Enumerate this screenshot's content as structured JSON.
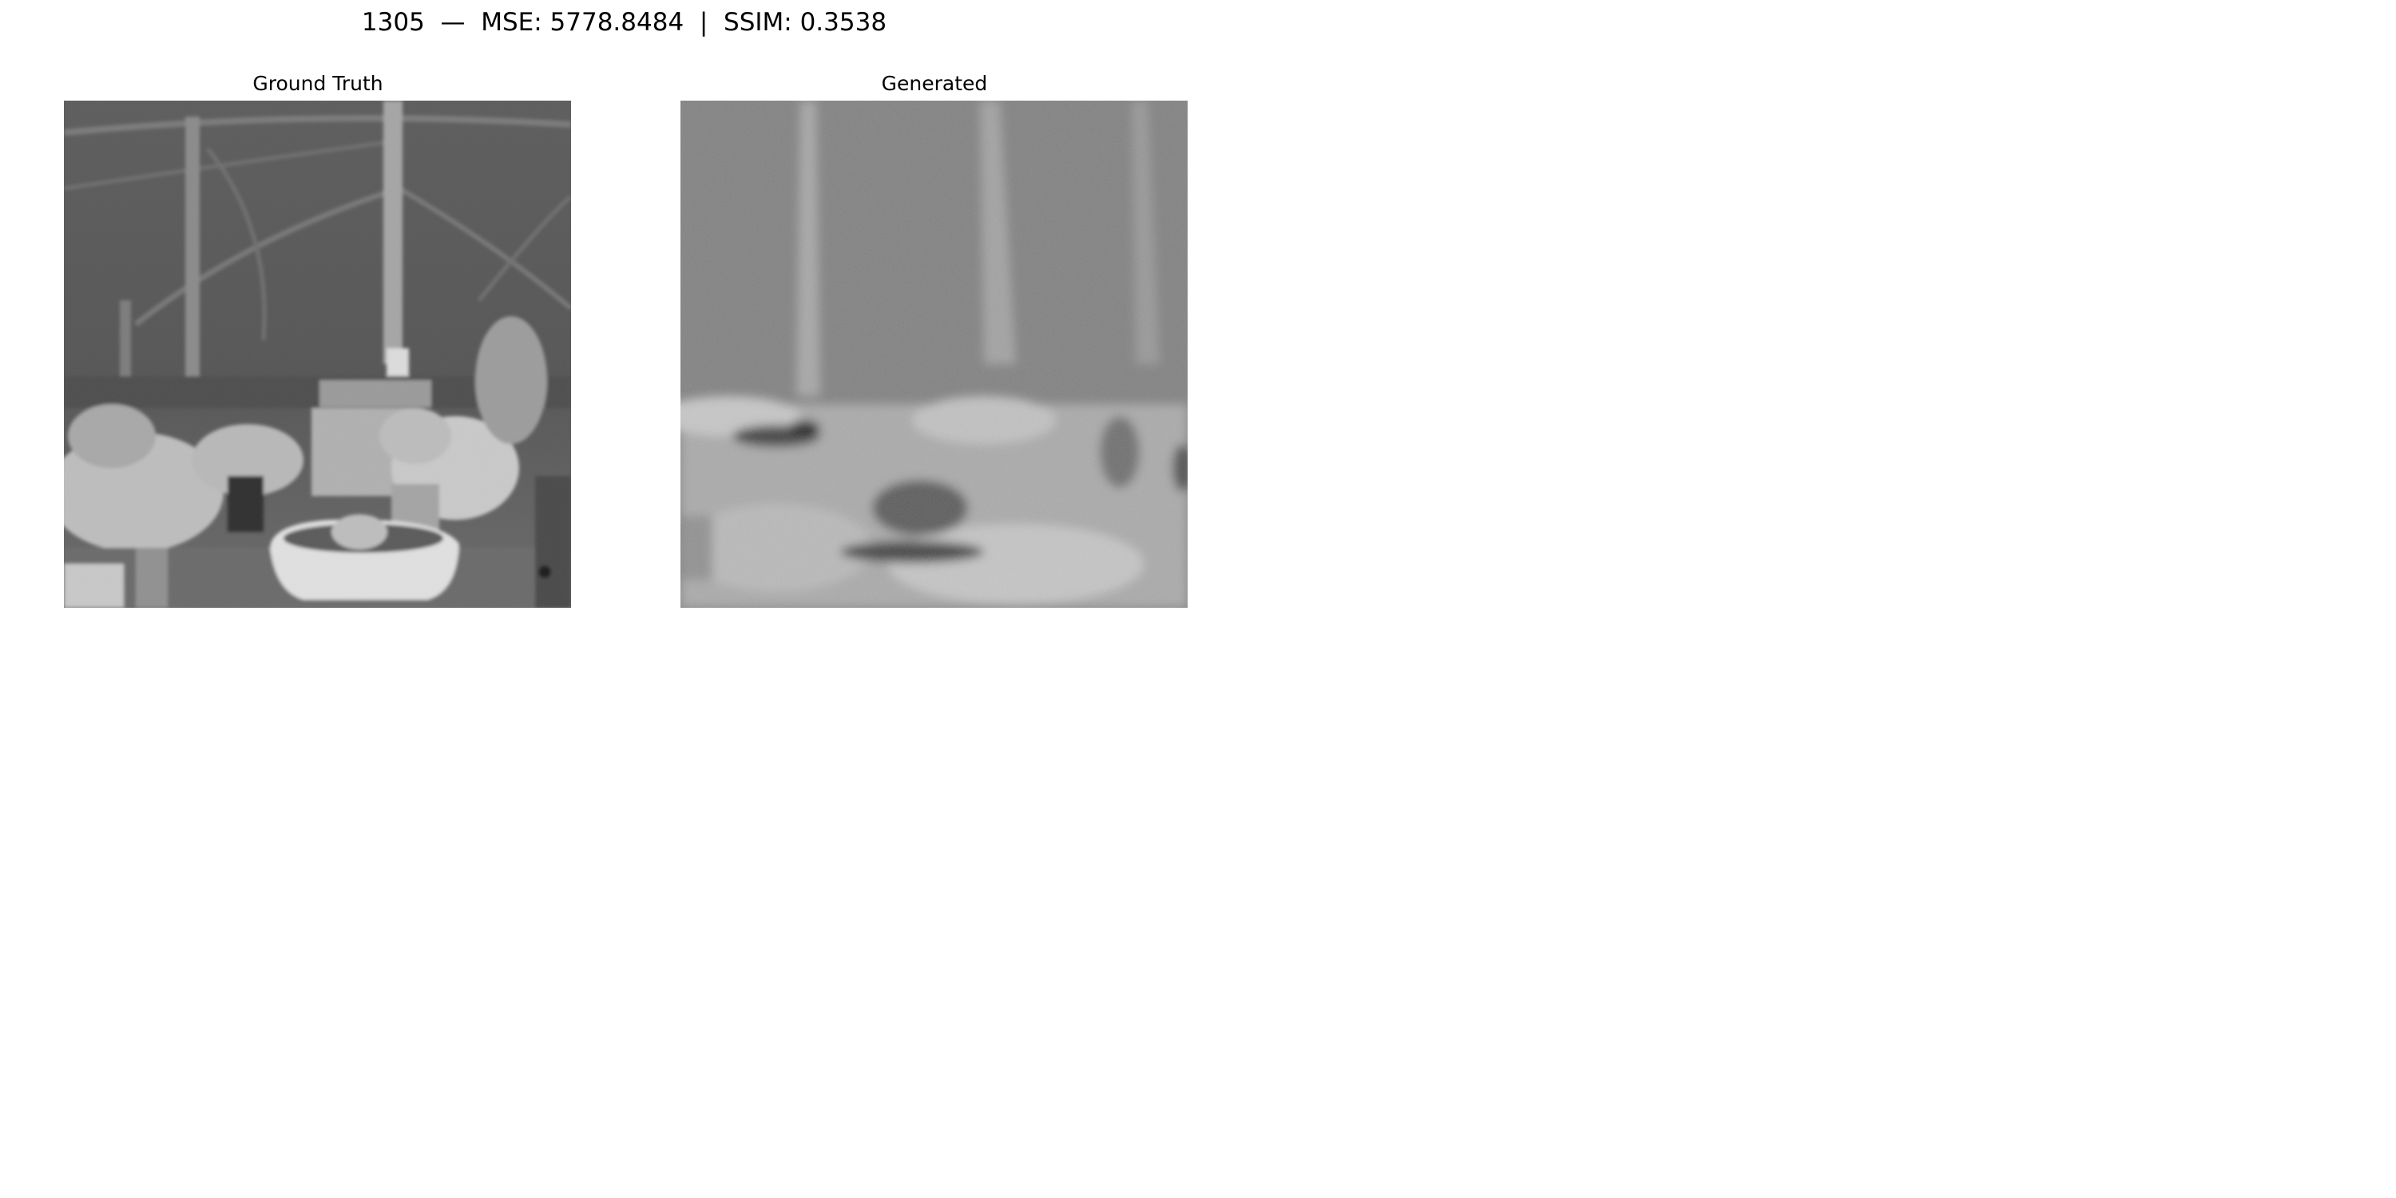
{
  "figure": {
    "title": "1305  —  MSE: 5778.8484  |  SSIM: 0.3538"
  },
  "panels": [
    {
      "title": "Ground Truth",
      "scene": "greenhouse-grayscale-ground-truth"
    },
    {
      "title": "Generated",
      "scene": "greenhouse-grayscale-generated-noisy"
    }
  ]
}
